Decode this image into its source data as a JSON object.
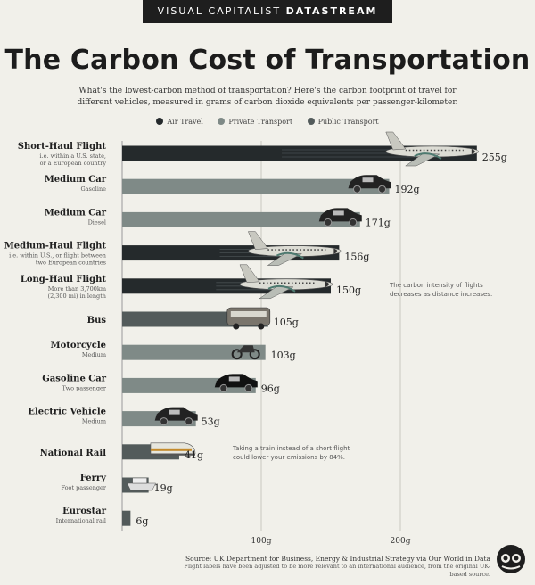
{
  "header": {
    "banner_regular": "VISUAL CAPITALIST ",
    "banner_bold": "DATASTREAM",
    "title": "The Carbon Cost of Transportation",
    "subtitle": "What's the lowest-carbon method of transportation? Here's the carbon footprint of travel for different vehicles, measured in grams of carbon dioxide equivalents per passenger-kilometer."
  },
  "legend": [
    {
      "label": "Air Travel",
      "color": "#252a2c"
    },
    {
      "label": "Private Transport",
      "color": "#7f8a87"
    },
    {
      "label": "Public Transport",
      "color": "#535b5b"
    }
  ],
  "chart_data": {
    "type": "bar",
    "orientation": "horizontal",
    "unit": "g",
    "xlim": [
      0,
      255
    ],
    "x_ticks": [
      100,
      200
    ],
    "x_tick_labels": [
      "100g",
      "200g"
    ],
    "bars": [
      {
        "label": "Short-Haul Flight",
        "sublabel": [
          "i.e. within a U.S. state,",
          "or a European country"
        ],
        "value": 255,
        "category": "Air Travel",
        "value_label": "255g",
        "icon": "airplane-icon"
      },
      {
        "label": "Medium Car",
        "sublabel": [
          "Gasoline"
        ],
        "value": 192,
        "category": "Private Transport",
        "value_label": "192g",
        "icon": "suv-icon"
      },
      {
        "label": "Medium Car",
        "sublabel": [
          "Diesel"
        ],
        "value": 171,
        "category": "Private Transport",
        "value_label": "171g",
        "icon": "pickup-truck-icon"
      },
      {
        "label": "Medium-Haul Flight",
        "sublabel": [
          "i.e. within U.S., or flight between",
          "two European countries"
        ],
        "value": 156,
        "category": "Air Travel",
        "value_label": "156g",
        "icon": "airplane-icon"
      },
      {
        "label": "Long-Haul Flight",
        "sublabel": [
          "More than 3,700km",
          "(2,300 mi) in length"
        ],
        "value": 150,
        "category": "Air Travel",
        "value_label": "150g",
        "icon": "airplane-icon"
      },
      {
        "label": "Bus",
        "sublabel": [],
        "value": 105,
        "category": "Public Transport",
        "value_label": "105g",
        "icon": "bus-icon"
      },
      {
        "label": "Motorcycle",
        "sublabel": [
          "Medium"
        ],
        "value": 103,
        "category": "Private Transport",
        "value_label": "103g",
        "icon": "motorcycle-icon"
      },
      {
        "label": "Gasoline Car",
        "sublabel": [
          "Two passenger"
        ],
        "value": 96,
        "category": "Private Transport",
        "value_label": "96g",
        "icon": "small-car-icon"
      },
      {
        "label": "Electric Vehicle",
        "sublabel": [
          "Medium"
        ],
        "value": 53,
        "category": "Private Transport",
        "value_label": "53g",
        "icon": "sedan-icon"
      },
      {
        "label": "National Rail",
        "sublabel": [],
        "value": 41,
        "category": "Public Transport",
        "value_label": "41g",
        "icon": "train-icon"
      },
      {
        "label": "Ferry",
        "sublabel": [
          "Foot passenger"
        ],
        "value": 19,
        "category": "Public Transport",
        "value_label": "19g",
        "icon": "ferry-icon"
      },
      {
        "label": "Eurostar",
        "sublabel": [
          "International rail"
        ],
        "value": 6,
        "category": "Public Transport",
        "value_label": "6g",
        "icon": ""
      }
    ],
    "annotations": [
      "The carbon intensity of flights decreases as distance increases.",
      "Taking a train instead of a short flight could lower your emissions by 84%."
    ]
  },
  "footer": {
    "source": "Source: UK Department for Business, Energy & Industrial Strategy via Our World in Data",
    "note": "Flight labels have been adjusted to be more relevant to an international audience, from the original UK-based source."
  }
}
